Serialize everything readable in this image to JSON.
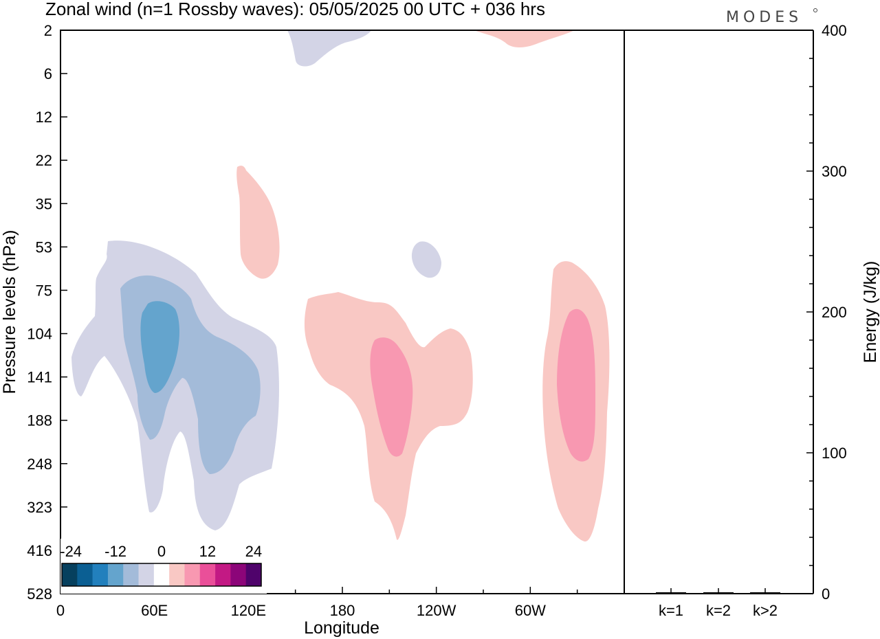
{
  "chart_data": {
    "type": "heatmap",
    "title": "Zonal wind (n=1 Rossby waves):  05/05/2025  00 UTC  + 036 hrs",
    "logo": "MODES",
    "xlabel": "Longitude",
    "ylabel": "Pressure levels (hPa)",
    "x_ticks": [
      "0",
      "60E",
      "120E",
      "180",
      "120W",
      "60W"
    ],
    "y_ticks": [
      "2",
      "6",
      "12",
      "22",
      "35",
      "53",
      "75",
      "104",
      "141",
      "188",
      "248",
      "323",
      "416",
      "528"
    ],
    "colorbar": {
      "tick_labels": [
        "-24",
        "-12",
        "0",
        "12",
        "24"
      ],
      "colors": [
        "#06405e",
        "#0b5f93",
        "#2280bd",
        "#64a4cd",
        "#a3bbd9",
        "#d3d4e6",
        "#ffffff",
        "#f9c8c4",
        "#f898b1",
        "#ea4f99",
        "#c31984",
        "#8c0579",
        "#4f036b"
      ]
    },
    "energy_panel": {
      "ylabel": "Energy (J/kg)",
      "y_ticks": [
        "0",
        "100",
        "200",
        "300",
        "400"
      ],
      "ylim": [
        0,
        400
      ],
      "categories": [
        "k=1",
        "k=2",
        "k>2"
      ],
      "values": [
        0.8,
        0.3,
        0.4
      ]
    }
  }
}
